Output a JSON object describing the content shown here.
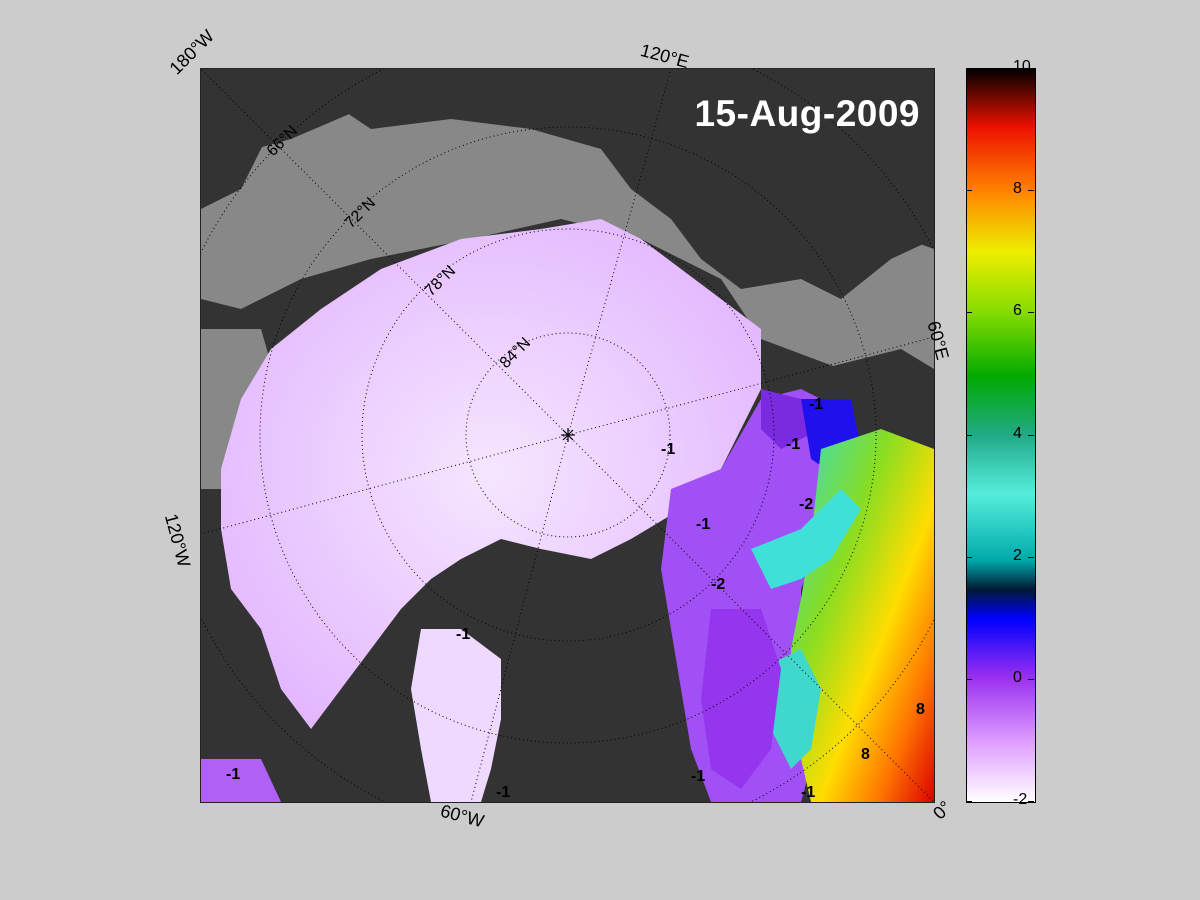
{
  "title": "15-Aug-2009",
  "longitude_labels": {
    "top_left": "180°W",
    "top": "120°E",
    "right": "60°E",
    "left": "120°W",
    "bottom": "60°W",
    "bottom_right": "0°"
  },
  "latitude_labels": [
    "66°N",
    "72°N",
    "78°N",
    "84°N"
  ],
  "contour_labels": [
    "-1",
    "-1",
    "-1",
    "-1",
    "-2",
    "-2",
    "-1",
    "-1",
    "-1",
    "8",
    "8",
    "-1",
    "-1"
  ],
  "colorbar": {
    "min": -2,
    "max": 10,
    "ticks": [
      "10",
      "8",
      "6",
      "4",
      "2",
      "0",
      "-2"
    ],
    "colors": {
      "c_-2": "#ffffff",
      "c_-1": "#e0a0ff",
      "c_0": "#9a2ff0",
      "c_1": "#0000ff",
      "c_1_5": "#001a33",
      "c_2": "#00aaaa",
      "c_3": "#55eedd",
      "c_4": "#22aa88",
      "c_5": "#00aa00",
      "c_6": "#88dd00",
      "c_7": "#eeee00",
      "c_8": "#ff8800",
      "c_9": "#ee1100",
      "c_10": "#000000"
    }
  },
  "colors": {
    "land": "#333333",
    "shelf": "#888888",
    "figure_bg": "#cccccc",
    "ice": "#eec8ff"
  }
}
